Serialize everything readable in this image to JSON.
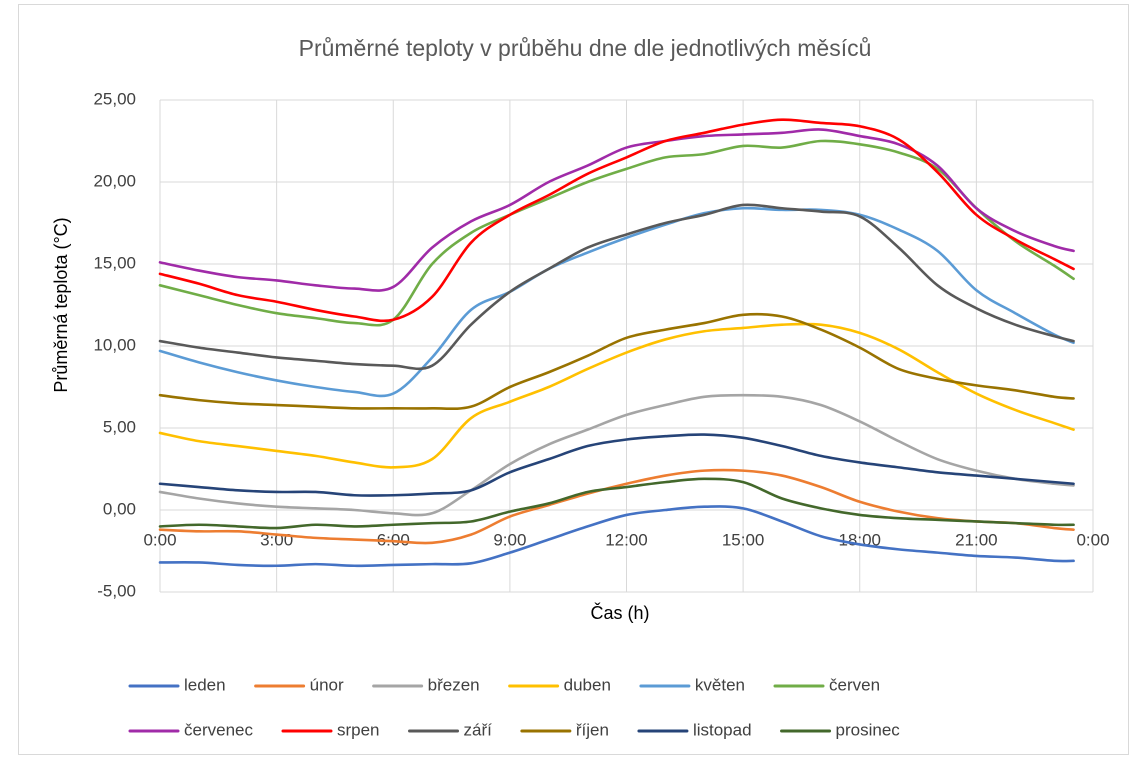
{
  "chart_data": {
    "type": "line",
    "title": "Průměrné teploty v průběhu dne dle jednotlivých měsíců",
    "x_label": "Čas (h)",
    "y_label": "Průměrná teplota (°C)",
    "x": [
      0,
      1,
      2,
      3,
      4,
      5,
      6,
      7,
      8,
      9,
      10,
      11,
      12,
      13,
      14,
      15,
      16,
      17,
      18,
      19,
      20,
      21,
      22,
      23,
      23.5
    ],
    "xlim": [
      0,
      24
    ],
    "xticks": [
      {
        "value": 0,
        "label": "0:00"
      },
      {
        "value": 3,
        "label": "3:00"
      },
      {
        "value": 6,
        "label": "6:00"
      },
      {
        "value": 9,
        "label": "9:00"
      },
      {
        "value": 12,
        "label": "12:00"
      },
      {
        "value": 15,
        "label": "15:00"
      },
      {
        "value": 18,
        "label": "18:00"
      },
      {
        "value": 21,
        "label": "21:00"
      },
      {
        "value": 24,
        "label": "0:00"
      }
    ],
    "ylim": [
      -5,
      25
    ],
    "yticks": [
      {
        "value": -5,
        "label": "-5,00"
      },
      {
        "value": 0,
        "label": "0,00"
      },
      {
        "value": 5,
        "label": "5,00"
      },
      {
        "value": 10,
        "label": "10,00"
      },
      {
        "value": 15,
        "label": "15,00"
      },
      {
        "value": 20,
        "label": "20,00"
      },
      {
        "value": 25,
        "label": "25,00"
      }
    ],
    "grid": true,
    "legend": "bottom",
    "series": [
      {
        "name": "leden",
        "color": "#4472c4",
        "values": [
          -3.2,
          -3.2,
          -3.35,
          -3.4,
          -3.3,
          -3.4,
          -3.35,
          -3.3,
          -3.25,
          -2.6,
          -1.8,
          -1.0,
          -0.3,
          0.0,
          0.2,
          0.1,
          -0.7,
          -1.6,
          -2.1,
          -2.4,
          -2.6,
          -2.8,
          -2.9,
          -3.1,
          -3.1
        ]
      },
      {
        "name": "únor",
        "color": "#ed7d31",
        "values": [
          -1.2,
          -1.3,
          -1.3,
          -1.5,
          -1.7,
          -1.8,
          -1.9,
          -2.0,
          -1.5,
          -0.4,
          0.3,
          1.0,
          1.6,
          2.1,
          2.4,
          2.4,
          2.1,
          1.4,
          0.5,
          -0.1,
          -0.5,
          -0.7,
          -0.8,
          -1.1,
          -1.2
        ]
      },
      {
        "name": "březen",
        "color": "#a5a5a5",
        "values": [
          1.1,
          0.7,
          0.4,
          0.2,
          0.1,
          0.0,
          -0.2,
          -0.2,
          1.2,
          2.8,
          4.0,
          4.9,
          5.8,
          6.4,
          6.9,
          7.0,
          6.9,
          6.4,
          5.4,
          4.2,
          3.1,
          2.4,
          1.9,
          1.6,
          1.5
        ]
      },
      {
        "name": "duben",
        "color": "#ffc000",
        "values": [
          4.7,
          4.2,
          3.9,
          3.6,
          3.3,
          2.9,
          2.6,
          3.1,
          5.6,
          6.6,
          7.5,
          8.6,
          9.6,
          10.4,
          10.9,
          11.1,
          11.3,
          11.3,
          10.8,
          9.8,
          8.4,
          7.1,
          6.1,
          5.3,
          4.9
        ]
      },
      {
        "name": "květen",
        "color": "#5b9bd5",
        "values": [
          9.7,
          9.0,
          8.4,
          7.9,
          7.5,
          7.2,
          7.1,
          9.3,
          12.2,
          13.3,
          14.7,
          15.7,
          16.6,
          17.4,
          18.1,
          18.4,
          18.3,
          18.3,
          18.0,
          17.1,
          15.8,
          13.4,
          12.0,
          10.7,
          10.2
        ]
      },
      {
        "name": "červen",
        "color": "#70ad47",
        "values": [
          13.7,
          13.1,
          12.5,
          12.0,
          11.7,
          11.4,
          11.6,
          15.0,
          16.9,
          18.0,
          19.0,
          20.0,
          20.8,
          21.5,
          21.7,
          22.2,
          22.1,
          22.5,
          22.3,
          21.8,
          20.8,
          18.4,
          16.4,
          14.9,
          14.1
        ]
      },
      {
        "name": "červenec",
        "color": "#a02ba8",
        "values": [
          15.1,
          14.6,
          14.2,
          14.0,
          13.7,
          13.5,
          13.6,
          16.0,
          17.6,
          18.6,
          20.0,
          21.0,
          22.1,
          22.5,
          22.8,
          22.9,
          23.0,
          23.2,
          22.8,
          22.3,
          21.0,
          18.4,
          17.0,
          16.1,
          15.8
        ]
      },
      {
        "name": "srpen",
        "color": "#ff0000",
        "values": [
          14.4,
          13.8,
          13.1,
          12.7,
          12.2,
          11.8,
          11.6,
          13.0,
          16.3,
          18.0,
          19.2,
          20.5,
          21.5,
          22.5,
          23.0,
          23.5,
          23.8,
          23.6,
          23.4,
          22.6,
          20.6,
          18.0,
          16.5,
          15.3,
          14.7
        ]
      },
      {
        "name": "září",
        "color": "#595959",
        "values": [
          10.3,
          9.9,
          9.6,
          9.3,
          9.1,
          8.9,
          8.8,
          8.8,
          11.3,
          13.3,
          14.7,
          16.0,
          16.8,
          17.5,
          18.0,
          18.6,
          18.4,
          18.2,
          17.9,
          16.0,
          13.7,
          12.3,
          11.3,
          10.6,
          10.3
        ]
      },
      {
        "name": "říjen",
        "color": "#997300",
        "values": [
          7.0,
          6.7,
          6.5,
          6.4,
          6.3,
          6.2,
          6.2,
          6.2,
          6.3,
          7.5,
          8.4,
          9.4,
          10.5,
          11.0,
          11.4,
          11.9,
          11.8,
          11.0,
          9.9,
          8.6,
          8.0,
          7.6,
          7.3,
          6.9,
          6.8
        ]
      },
      {
        "name": "listopad",
        "color": "#264478",
        "values": [
          1.6,
          1.4,
          1.2,
          1.1,
          1.1,
          0.9,
          0.9,
          1.0,
          1.2,
          2.3,
          3.1,
          3.9,
          4.3,
          4.5,
          4.6,
          4.4,
          3.9,
          3.3,
          2.9,
          2.6,
          2.3,
          2.1,
          1.9,
          1.7,
          1.6
        ]
      },
      {
        "name": "prosinec",
        "color": "#43682b",
        "values": [
          -1.0,
          -0.9,
          -1.0,
          -1.1,
          -0.9,
          -1.0,
          -0.9,
          -0.8,
          -0.7,
          -0.1,
          0.4,
          1.1,
          1.4,
          1.7,
          1.9,
          1.7,
          0.7,
          0.1,
          -0.3,
          -0.5,
          -0.6,
          -0.7,
          -0.8,
          -0.9,
          -0.9
        ]
      }
    ]
  }
}
